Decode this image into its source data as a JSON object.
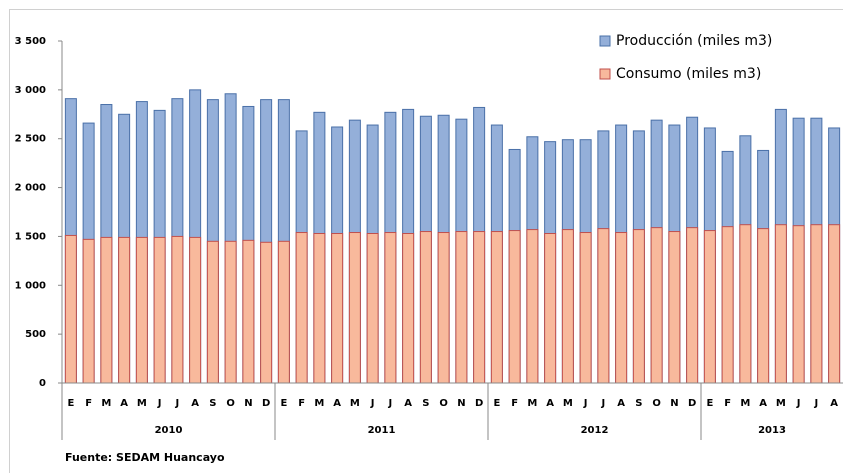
{
  "chart_data": {
    "type": "bar",
    "categories": [
      "E",
      "F",
      "M",
      "A",
      "M",
      "J",
      "J",
      "A",
      "S",
      "O",
      "N",
      "D",
      "E",
      "F",
      "M",
      "A",
      "M",
      "J",
      "J",
      "A",
      "S",
      "O",
      "N",
      "D",
      "E",
      "F",
      "M",
      "A",
      "M",
      "J",
      "J",
      "A",
      "S",
      "O",
      "N",
      "D",
      "E",
      "F",
      "M",
      "A",
      "M",
      "J",
      "J",
      "A"
    ],
    "year_groups": [
      "2010",
      "2011",
      "2012",
      "2013"
    ],
    "series": [
      {
        "name": "Producción (miles m3)",
        "color": "#94afd9",
        "values": [
          2910,
          2660,
          2850,
          2750,
          2880,
          2790,
          2910,
          3000,
          2900,
          2960,
          2830,
          2900,
          2900,
          2580,
          2770,
          2620,
          2690,
          2640,
          2770,
          2800,
          2730,
          2740,
          2700,
          2820,
          2640,
          2390,
          2520,
          2470,
          2490,
          2490,
          2580,
          2640,
          2580,
          2690,
          2640,
          2720,
          2610,
          2370,
          2530,
          2380,
          2800,
          2710,
          2710,
          2610
        ]
      },
      {
        "name": "Consumo (miles m3)",
        "color": "#f8b99c",
        "values": [
          1510,
          1470,
          1490,
          1490,
          1490,
          1490,
          1500,
          1490,
          1450,
          1450,
          1460,
          1440,
          1450,
          1540,
          1530,
          1530,
          1540,
          1530,
          1540,
          1530,
          1550,
          1540,
          1550,
          1550,
          1550,
          1560,
          1570,
          1530,
          1570,
          1540,
          1580,
          1540,
          1570,
          1590,
          1550,
          1590,
          1560,
          1600,
          1620,
          1580,
          1620,
          1610,
          1620,
          1620
        ]
      }
    ],
    "ylim": [
      0,
      3500
    ],
    "yticks": [
      0,
      500,
      {
        "value": 1000,
        "label": "1 000"
      },
      {
        "value": 1500,
        "label": "1 500"
      },
      {
        "value": 2000,
        "label": "2 000"
      },
      {
        "value": 2500,
        "label": "2 500"
      },
      {
        "value": 3000,
        "label": "3 000"
      },
      {
        "value": 3500,
        "label": "3 500"
      }
    ],
    "legend": "top-right",
    "source": "Fuente: SEDAM Huancayo"
  }
}
